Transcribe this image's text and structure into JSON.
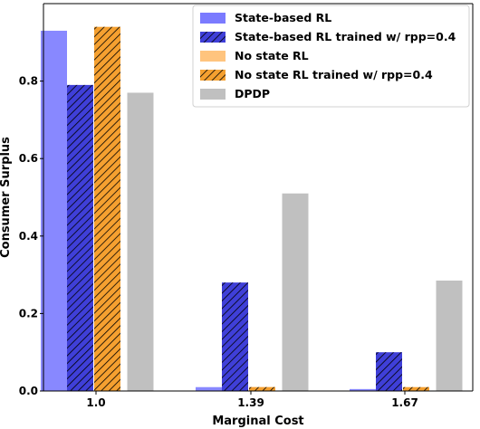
{
  "chart_data": {
    "type": "bar",
    "categories": [
      "1.0",
      "1.39",
      "1.67"
    ],
    "xlabel": "Marginal Cost",
    "ylabel": "Consumer Surplus",
    "ylim": [
      0,
      1.0
    ],
    "yticks": [
      "0.0",
      "0.2",
      "0.4",
      "0.6",
      "0.8"
    ],
    "ytick_values": [
      0.0,
      0.2,
      0.4,
      0.6,
      0.8
    ],
    "grid": false,
    "legend_position": "top-right",
    "series": [
      {
        "name": "State-based RL",
        "values": [
          0.93,
          0.01,
          0.005
        ],
        "color": "#7b7bff",
        "hatch": false,
        "overlay": true
      },
      {
        "name": "State-based RL trained w/ rpp=0.4",
        "values": [
          0.79,
          0.28,
          0.1
        ],
        "color": "#3f3fd8",
        "hatch": true,
        "overlay": true
      },
      {
        "name": "No state RL",
        "values": [
          0.935,
          0.01,
          0.005
        ],
        "color": "#ffc47e",
        "hatch": false,
        "overlay": false
      },
      {
        "name": "No state RL trained w/ rpp=0.4",
        "values": [
          0.94,
          0.01,
          0.01
        ],
        "color": "#f5a030",
        "hatch": true,
        "overlay": false
      },
      {
        "name": "DPDP",
        "values": [
          0.77,
          0.51,
          0.285
        ],
        "color": "#c0c0c0",
        "hatch": false,
        "overlay": false
      }
    ]
  }
}
